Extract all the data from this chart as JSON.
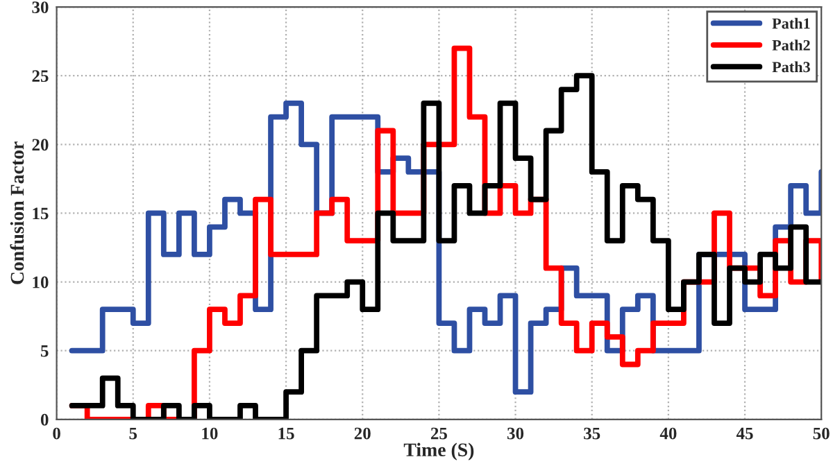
{
  "chart_data": {
    "type": "step",
    "xlabel": "Time (S)",
    "ylabel": "Confusion Factor",
    "x": [
      1,
      2,
      3,
      4,
      5,
      6,
      7,
      8,
      9,
      10,
      11,
      12,
      13,
      14,
      15,
      16,
      17,
      18,
      19,
      20,
      21,
      22,
      23,
      24,
      25,
      26,
      27,
      28,
      29,
      30,
      31,
      32,
      33,
      34,
      35,
      36,
      37,
      38,
      39,
      40,
      41,
      42,
      43,
      44,
      45,
      46,
      47,
      48,
      49,
      50
    ],
    "series": [
      {
        "name": "Path1",
        "color": "#2e4fa3",
        "values": [
          5,
          5,
          8,
          8,
          7,
          15,
          12,
          15,
          12,
          14,
          16,
          15,
          8,
          22,
          23,
          20,
          15,
          22,
          22,
          22,
          18,
          19,
          18,
          18,
          7,
          5,
          8,
          7,
          9,
          2,
          7,
          8,
          11,
          9,
          9,
          5,
          8,
          9,
          5,
          5,
          5,
          12,
          12,
          12,
          8,
          8,
          14,
          17,
          15,
          18
        ]
      },
      {
        "name": "Path2",
        "color": "#ff0000",
        "values": [
          1,
          0,
          0,
          0,
          0,
          1,
          0,
          0,
          5,
          8,
          7,
          9,
          16,
          12,
          12,
          12,
          15,
          16,
          13,
          13,
          21,
          15,
          15,
          20,
          20,
          27,
          22,
          15,
          17,
          15,
          16,
          11,
          7,
          5,
          7,
          6,
          4,
          5,
          7,
          7,
          10,
          10,
          15,
          11,
          11,
          9,
          13,
          10,
          13,
          10
        ]
      },
      {
        "name": "Path3",
        "color": "#000000",
        "values": [
          1,
          1,
          3,
          1,
          0,
          0,
          1,
          0,
          1,
          0,
          0,
          1,
          0,
          0,
          2,
          5,
          9,
          9,
          10,
          8,
          15,
          13,
          13,
          23,
          13,
          17,
          15,
          17,
          23,
          19,
          16,
          21,
          24,
          25,
          18,
          13,
          17,
          16,
          13,
          8,
          10,
          12,
          7,
          11,
          10,
          12,
          11,
          14,
          10,
          10
        ]
      }
    ],
    "xlim": [
      0,
      50
    ],
    "ylim": [
      0,
      30
    ],
    "xticks": [
      0,
      5,
      10,
      15,
      20,
      25,
      30,
      35,
      40,
      45,
      50
    ],
    "yticks": [
      0,
      5,
      10,
      15,
      20,
      25,
      30
    ],
    "grid": true,
    "legend": "top right",
    "line_style": "solid"
  }
}
